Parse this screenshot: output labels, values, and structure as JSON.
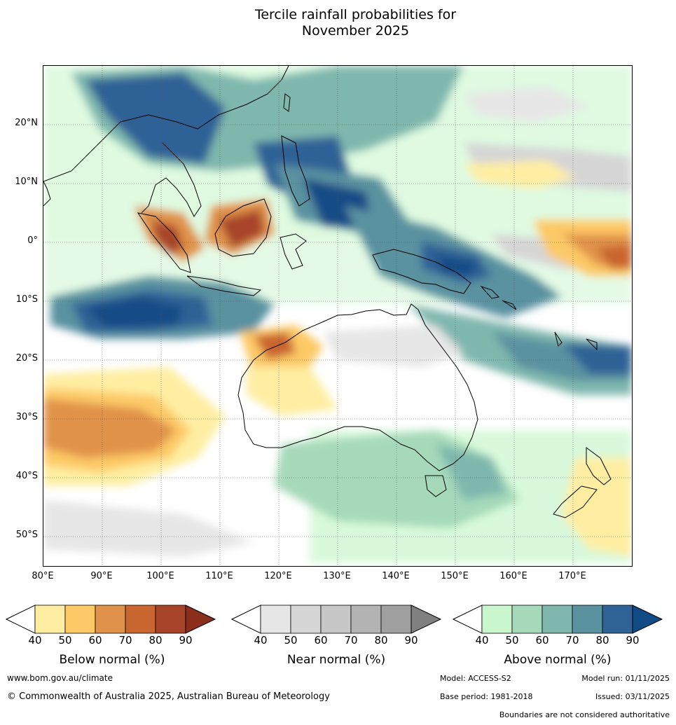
{
  "title": {
    "line1": "Tercile rainfall probabilities for",
    "line2": "November 2025"
  },
  "map": {
    "region": "Australia, Indonesia and western Pacific",
    "lat_labels": [
      "20°N",
      "10°N",
      "0°",
      "10°S",
      "20°S",
      "30°S",
      "40°S",
      "50°S"
    ],
    "lon_labels": [
      "80°E",
      "90°E",
      "100°E",
      "110°E",
      "120°E",
      "130°E",
      "140°E",
      "150°E",
      "160°E",
      "170°E"
    ]
  },
  "colorbars": [
    {
      "title": "Below normal (%)",
      "ticks": [
        "40",
        "50",
        "60",
        "70",
        "80",
        "90"
      ],
      "colors": [
        "#ffeea2",
        "#fdc966",
        "#e0924a",
        "#c9652f",
        "#a8442a",
        "#8b2e1c"
      ]
    },
    {
      "title": "Near normal (%)",
      "ticks": [
        "40",
        "50",
        "60",
        "70",
        "80",
        "90"
      ],
      "colors": [
        "#e6e6e6",
        "#d6d6d6",
        "#c6c6c6",
        "#b3b3b3",
        "#9f9f9f",
        "#808080"
      ]
    },
    {
      "title": "Above normal (%)",
      "ticks": [
        "40",
        "50",
        "60",
        "70",
        "80",
        "90"
      ],
      "colors": [
        "#c9f6cd",
        "#a5d9b9",
        "#7fb7ad",
        "#5a92a0",
        "#2f6296",
        "#134b86"
      ]
    }
  ],
  "footer": {
    "website": "www.bom.gov.au/climate",
    "copyright": "© Commonwealth of Australia 2025, Australian Bureau of Meteorology",
    "model": "Model: ACCESS-S2",
    "model_run": "Model run: 01/11/2025",
    "base_period": "Base period: 1981-2018",
    "issued": "Issued: 03/11/2025",
    "disclaimer": "Boundaries are not considered authoritative"
  }
}
